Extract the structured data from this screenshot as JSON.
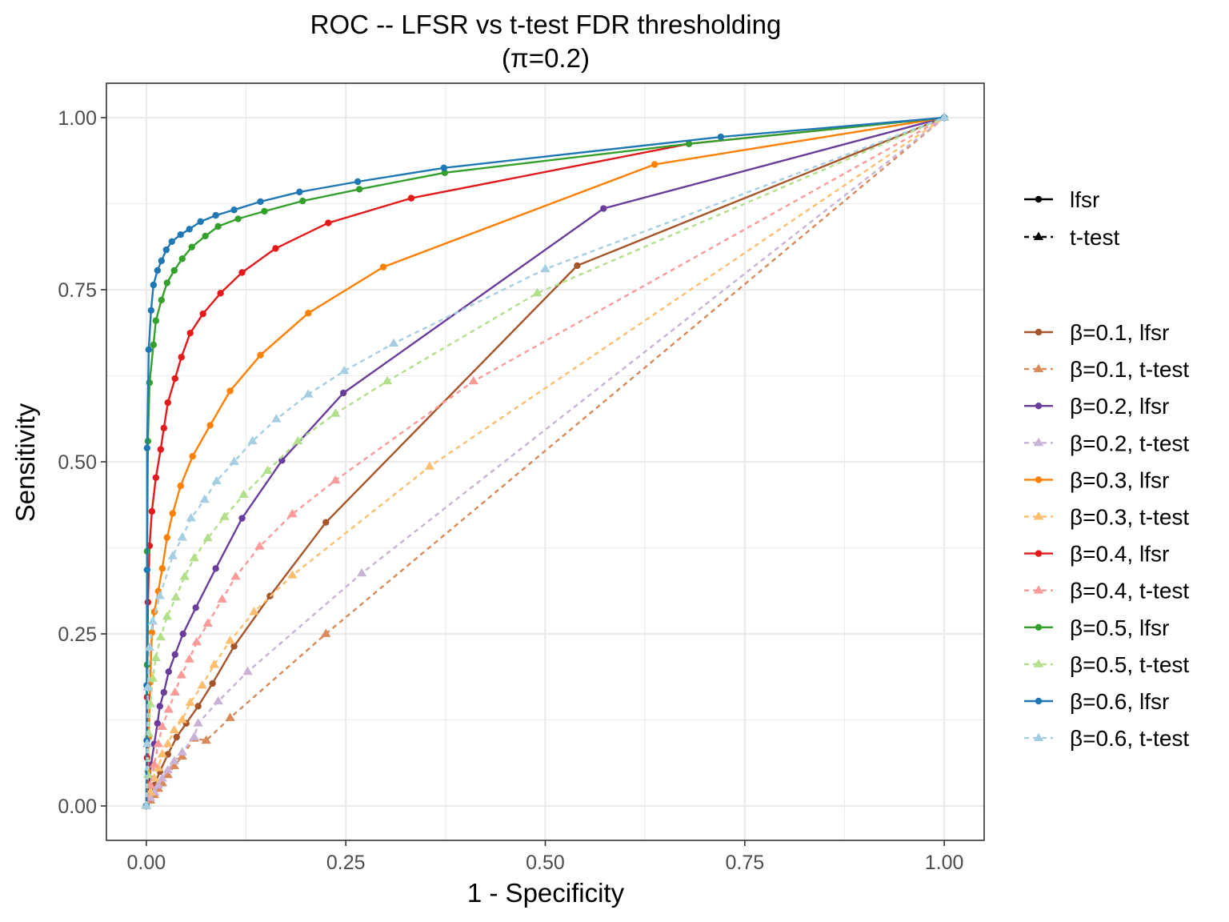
{
  "chart_data": {
    "type": "line",
    "title": "ROC -- LFSR vs t-test FDR thresholding",
    "subtitle": "(π=0.2)",
    "xlabel": "1 - Specificity",
    "ylabel": "Sensitivity",
    "xlim": [
      -0.05,
      1.05
    ],
    "ylim": [
      -0.05,
      1.05
    ],
    "x_ticks": [
      0.0,
      0.25,
      0.5,
      0.75,
      1.0
    ],
    "x_tick_labels": [
      "0.00",
      "0.25",
      "0.50",
      "0.75",
      "1.00"
    ],
    "y_ticks": [
      0.0,
      0.25,
      0.5,
      0.75,
      1.0
    ],
    "y_tick_labels": [
      "0.00",
      "0.25",
      "0.50",
      "0.75",
      "1.00"
    ],
    "grid": true,
    "legend_position": "right",
    "method_legend": [
      {
        "label": "lfsr",
        "linetype": "solid",
        "marker": "circle"
      },
      {
        "label": "t-test",
        "linetype": "dashed",
        "marker": "triangle"
      }
    ],
    "series": [
      {
        "name": "β=0.1, lfsr",
        "color": "#a6552a",
        "dash": false,
        "marker": "circle",
        "points": [
          [
            0,
            0
          ],
          [
            0.005,
            0.01
          ],
          [
            0.01,
            0.03
          ],
          [
            0.017,
            0.05
          ],
          [
            0.027,
            0.075
          ],
          [
            0.038,
            0.1
          ],
          [
            0.05,
            0.12
          ],
          [
            0.065,
            0.145
          ],
          [
            0.083,
            0.178
          ],
          [
            0.11,
            0.232
          ],
          [
            0.155,
            0.305
          ],
          [
            0.225,
            0.412
          ],
          [
            0.54,
            0.785
          ],
          [
            1,
            1
          ]
        ]
      },
      {
        "name": "β=0.1, t-test",
        "color": "#d9895a",
        "dash": true,
        "marker": "triangle",
        "points": [
          [
            0,
            0
          ],
          [
            0.005,
            0.008
          ],
          [
            0.01,
            0.016
          ],
          [
            0.015,
            0.025
          ],
          [
            0.02,
            0.033
          ],
          [
            0.027,
            0.045
          ],
          [
            0.035,
            0.058
          ],
          [
            0.045,
            0.072
          ],
          [
            0.06,
            0.098
          ],
          [
            0.075,
            0.095
          ],
          [
            0.105,
            0.128
          ],
          [
            0.225,
            0.25
          ],
          [
            1,
            1
          ]
        ]
      },
      {
        "name": "β=0.2, lfsr",
        "color": "#6a3d9a",
        "dash": false,
        "marker": "circle",
        "points": [
          [
            0,
            0
          ],
          [
            0.003,
            0.03
          ],
          [
            0.006,
            0.06
          ],
          [
            0.01,
            0.09
          ],
          [
            0.014,
            0.12
          ],
          [
            0.017,
            0.145
          ],
          [
            0.022,
            0.165
          ],
          [
            0.028,
            0.195
          ],
          [
            0.036,
            0.22
          ],
          [
            0.046,
            0.25
          ],
          [
            0.062,
            0.288
          ],
          [
            0.087,
            0.345
          ],
          [
            0.12,
            0.418
          ],
          [
            0.17,
            0.502
          ],
          [
            0.247,
            0.6
          ],
          [
            0.573,
            0.868
          ],
          [
            1,
            1
          ]
        ]
      },
      {
        "name": "β=0.2, t-test",
        "color": "#cab2d6",
        "dash": true,
        "marker": "triangle",
        "points": [
          [
            0,
            0
          ],
          [
            0.005,
            0.012
          ],
          [
            0.01,
            0.02
          ],
          [
            0.015,
            0.03
          ],
          [
            0.02,
            0.04
          ],
          [
            0.027,
            0.052
          ],
          [
            0.035,
            0.065
          ],
          [
            0.045,
            0.078
          ],
          [
            0.06,
            0.1
          ],
          [
            0.065,
            0.12
          ],
          [
            0.09,
            0.152
          ],
          [
            0.127,
            0.195
          ],
          [
            0.27,
            0.338
          ],
          [
            1,
            1
          ]
        ]
      },
      {
        "name": "β=0.3, lfsr",
        "color": "#ff7f00",
        "dash": false,
        "marker": "circle",
        "points": [
          [
            0,
            0
          ],
          [
            0.002,
            0.05
          ],
          [
            0.003,
            0.1
          ],
          [
            0.005,
            0.18
          ],
          [
            0.007,
            0.252
          ],
          [
            0.01,
            0.282
          ],
          [
            0.015,
            0.312
          ],
          [
            0.02,
            0.345
          ],
          [
            0.026,
            0.39
          ],
          [
            0.033,
            0.425
          ],
          [
            0.043,
            0.465
          ],
          [
            0.058,
            0.508
          ],
          [
            0.08,
            0.553
          ],
          [
            0.105,
            0.603
          ],
          [
            0.143,
            0.655
          ],
          [
            0.203,
            0.716
          ],
          [
            0.297,
            0.783
          ],
          [
            0.637,
            0.932
          ],
          [
            1,
            1
          ]
        ]
      },
      {
        "name": "β=0.3, t-test",
        "color": "#fdbf6f",
        "dash": true,
        "marker": "triangle",
        "points": [
          [
            0,
            0
          ],
          [
            0.005,
            0.02
          ],
          [
            0.01,
            0.04
          ],
          [
            0.015,
            0.055
          ],
          [
            0.02,
            0.075
          ],
          [
            0.027,
            0.09
          ],
          [
            0.035,
            0.11
          ],
          [
            0.045,
            0.125
          ],
          [
            0.055,
            0.15
          ],
          [
            0.07,
            0.175
          ],
          [
            0.085,
            0.205
          ],
          [
            0.105,
            0.24
          ],
          [
            0.135,
            0.282
          ],
          [
            0.183,
            0.335
          ],
          [
            0.355,
            0.493
          ],
          [
            1,
            1
          ]
        ]
      },
      {
        "name": "β=0.4, lfsr",
        "color": "#e31a1c",
        "dash": false,
        "marker": "circle",
        "points": [
          [
            0,
            0
          ],
          [
            0.001,
            0.07
          ],
          [
            0.001,
            0.158
          ],
          [
            0.002,
            0.296
          ],
          [
            0.004,
            0.378
          ],
          [
            0.007,
            0.428
          ],
          [
            0.012,
            0.477
          ],
          [
            0.018,
            0.518
          ],
          [
            0.022,
            0.549
          ],
          [
            0.027,
            0.586
          ],
          [
            0.036,
            0.621
          ],
          [
            0.044,
            0.652
          ],
          [
            0.055,
            0.687
          ],
          [
            0.071,
            0.715
          ],
          [
            0.093,
            0.745
          ],
          [
            0.12,
            0.775
          ],
          [
            0.162,
            0.81
          ],
          [
            0.228,
            0.847
          ],
          [
            0.332,
            0.883
          ],
          [
            0.68,
            0.962
          ],
          [
            1,
            1
          ]
        ]
      },
      {
        "name": "β=0.4, t-test",
        "color": "#fb9a99",
        "dash": true,
        "marker": "triangle",
        "points": [
          [
            0,
            0
          ],
          [
            0.005,
            0.03
          ],
          [
            0.01,
            0.06
          ],
          [
            0.015,
            0.09
          ],
          [
            0.02,
            0.115
          ],
          [
            0.028,
            0.14
          ],
          [
            0.036,
            0.165
          ],
          [
            0.044,
            0.19
          ],
          [
            0.054,
            0.213
          ],
          [
            0.063,
            0.238
          ],
          [
            0.077,
            0.265
          ],
          [
            0.095,
            0.3
          ],
          [
            0.112,
            0.333
          ],
          [
            0.142,
            0.377
          ],
          [
            0.183,
            0.424
          ],
          [
            0.237,
            0.473
          ],
          [
            0.41,
            0.617
          ],
          [
            1,
            1
          ]
        ]
      },
      {
        "name": "β=0.5, lfsr",
        "color": "#33a02c",
        "dash": false,
        "marker": "circle",
        "points": [
          [
            0,
            0
          ],
          [
            0.001,
            0.205
          ],
          [
            0.001,
            0.37
          ],
          [
            0.002,
            0.53
          ],
          [
            0.004,
            0.615
          ],
          [
            0.009,
            0.67
          ],
          [
            0.012,
            0.705
          ],
          [
            0.019,
            0.735
          ],
          [
            0.026,
            0.76
          ],
          [
            0.035,
            0.778
          ],
          [
            0.045,
            0.795
          ],
          [
            0.057,
            0.812
          ],
          [
            0.074,
            0.828
          ],
          [
            0.09,
            0.842
          ],
          [
            0.115,
            0.853
          ],
          [
            0.148,
            0.864
          ],
          [
            0.196,
            0.879
          ],
          [
            0.267,
            0.896
          ],
          [
            0.374,
            0.92
          ],
          [
            0.68,
            0.962
          ],
          [
            1,
            1
          ]
        ]
      },
      {
        "name": "β=0.5, t-test",
        "color": "#b2df8a",
        "dash": true,
        "marker": "triangle",
        "points": [
          [
            0,
            0
          ],
          [
            0.002,
            0.045
          ],
          [
            0.003,
            0.105
          ],
          [
            0.005,
            0.148
          ],
          [
            0.008,
            0.185
          ],
          [
            0.012,
            0.215
          ],
          [
            0.018,
            0.245
          ],
          [
            0.026,
            0.275
          ],
          [
            0.037,
            0.303
          ],
          [
            0.048,
            0.333
          ],
          [
            0.06,
            0.36
          ],
          [
            0.077,
            0.389
          ],
          [
            0.098,
            0.42
          ],
          [
            0.122,
            0.452
          ],
          [
            0.152,
            0.487
          ],
          [
            0.19,
            0.53
          ],
          [
            0.237,
            0.57
          ],
          [
            0.302,
            0.617
          ],
          [
            0.49,
            0.745
          ],
          [
            1,
            1
          ]
        ]
      },
      {
        "name": "β=0.6, lfsr",
        "color": "#1f78b4",
        "dash": false,
        "marker": "circle",
        "points": [
          [
            0,
            0
          ],
          [
            0.0005,
            0.095
          ],
          [
            0.0005,
            0.175
          ],
          [
            0.001,
            0.343
          ],
          [
            0.001,
            0.52
          ],
          [
            0.003,
            0.663
          ],
          [
            0.006,
            0.72
          ],
          [
            0.009,
            0.757
          ],
          [
            0.014,
            0.778
          ],
          [
            0.019,
            0.792
          ],
          [
            0.025,
            0.808
          ],
          [
            0.032,
            0.82
          ],
          [
            0.043,
            0.83
          ],
          [
            0.054,
            0.838
          ],
          [
            0.068,
            0.849
          ],
          [
            0.087,
            0.858
          ],
          [
            0.11,
            0.866
          ],
          [
            0.143,
            0.878
          ],
          [
            0.192,
            0.892
          ],
          [
            0.265,
            0.907
          ],
          [
            0.373,
            0.927
          ],
          [
            0.72,
            0.972
          ],
          [
            1,
            1
          ]
        ]
      },
      {
        "name": "β=0.6, t-test",
        "color": "#a6cee3",
        "dash": true,
        "marker": "triangle",
        "points": [
          [
            0,
            0
          ],
          [
            0.001,
            0.09
          ],
          [
            0.002,
            0.172
          ],
          [
            0.004,
            0.23
          ],
          [
            0.008,
            0.268
          ],
          [
            0.017,
            0.305
          ],
          [
            0.033,
            0.363
          ],
          [
            0.045,
            0.39
          ],
          [
            0.056,
            0.418
          ],
          [
            0.073,
            0.445
          ],
          [
            0.088,
            0.472
          ],
          [
            0.11,
            0.5
          ],
          [
            0.133,
            0.53
          ],
          [
            0.163,
            0.562
          ],
          [
            0.203,
            0.598
          ],
          [
            0.248,
            0.632
          ],
          [
            0.31,
            0.672
          ],
          [
            0.5,
            0.78
          ],
          [
            1,
            1
          ]
        ]
      }
    ]
  }
}
